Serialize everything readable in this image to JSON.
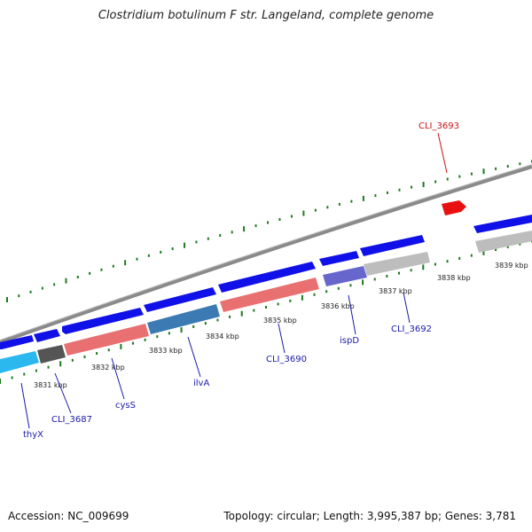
{
  "title": "Clostridium botulinum F str. Langeland, complete genome",
  "footer": {
    "accession": "Accession: NC_009699",
    "summary": "Topology: circular; Length: 3,995,387 bp; Genes: 3,781"
  },
  "colors": {
    "forward_cds": "#1010e8",
    "highlight": "#e81010",
    "backbone": "#8a8a8a",
    "tick": "#1e7a1e",
    "label_blue": "#1a1aa8",
    "label_red": "#cc1111"
  },
  "scale_ticks": [
    {
      "kbp": 3831,
      "label": "3831 kbp"
    },
    {
      "kbp": 3832,
      "label": "3832 kbp"
    },
    {
      "kbp": 3833,
      "label": "3833 kbp"
    },
    {
      "kbp": 3834,
      "label": "3834 kbp"
    },
    {
      "kbp": 3835,
      "label": "3835 kbp"
    },
    {
      "kbp": 3836,
      "label": "3836 kbp"
    },
    {
      "kbp": 3837,
      "label": "3837 kbp"
    },
    {
      "kbp": 3838,
      "label": "3838 kbp"
    },
    {
      "kbp": 3839,
      "label": "3839 kbp"
    }
  ],
  "gene_labels": [
    {
      "name": "thyX",
      "color": "blue"
    },
    {
      "name": "CLI_3687",
      "color": "blue"
    },
    {
      "name": "cysS",
      "color": "blue"
    },
    {
      "name": "ilvA",
      "color": "blue"
    },
    {
      "name": "CLI_3690",
      "color": "blue"
    },
    {
      "name": "ispD",
      "color": "blue"
    },
    {
      "name": "CLI_3692",
      "color": "blue"
    },
    {
      "name": "CLI_3693",
      "color": "red"
    }
  ]
}
